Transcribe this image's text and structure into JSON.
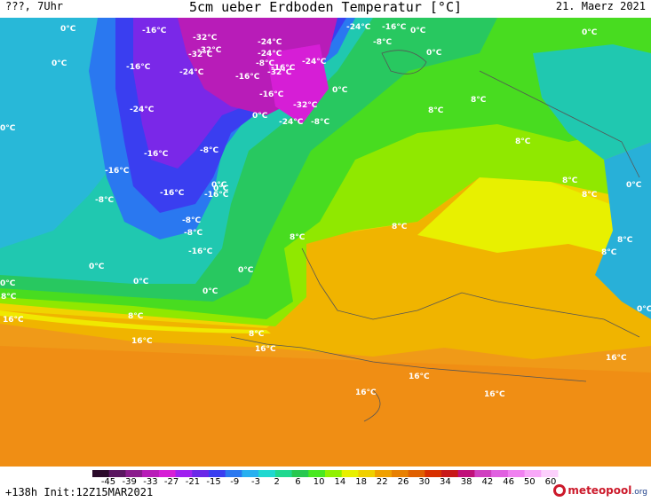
{
  "header": {
    "left": "???, 7Uhr",
    "title": "5cm ueber Erdboden Temperatur [°C]",
    "date": "21. Maerz 2021"
  },
  "footer": {
    "init": "+138h Init:12Z15MAR2021",
    "logo_main": "meteopool",
    "logo_tld": ".org"
  },
  "legend": {
    "ticks": [
      "-45",
      "-39",
      "-33",
      "-27",
      "-21",
      "-15",
      "-9",
      "-3",
      "2",
      "6",
      "10",
      "14",
      "18",
      "22",
      "26",
      "30",
      "34",
      "38",
      "42",
      "46",
      "50",
      "60"
    ],
    "colors": [
      "#2a0a2a",
      "#5a1660",
      "#8a1c8c",
      "#b81cb8",
      "#d61ed6",
      "#a020f0",
      "#6a28e8",
      "#3a3ef0",
      "#2a78f0",
      "#28b0f0",
      "#20d8d0",
      "#20d890",
      "#28c850",
      "#48e820",
      "#90f000",
      "#e8f000",
      "#f0d000",
      "#f0a000",
      "#e88000",
      "#e06000",
      "#d83000",
      "#c81818",
      "#c0107a",
      "#d040c0",
      "#e060e0",
      "#f080f0",
      "#f8a8f8",
      "#fcd0fc"
    ]
  },
  "map_labels": [
    {
      "t": "0°C"
    },
    {
      "t": "-16°C"
    },
    {
      "t": "-32°C"
    },
    {
      "t": "-32°C"
    },
    {
      "t": "-24°C"
    },
    {
      "t": "-24°C"
    },
    {
      "t": "-16°C"
    },
    {
      "t": "-8°C"
    },
    {
      "t": "0°C"
    },
    {
      "t": "0°C"
    },
    {
      "t": "-32°C"
    },
    {
      "t": "-24°C"
    },
    {
      "t": "-8°C"
    },
    {
      "t": "-16°C"
    },
    {
      "t": "-24°C"
    },
    {
      "t": "0°C"
    },
    {
      "t": "0°C"
    },
    {
      "t": "-16°C"
    },
    {
      "t": "-32°C"
    },
    {
      "t": "-16°C"
    },
    {
      "t": "-16°C"
    },
    {
      "t": "0°C"
    },
    {
      "t": "-32°C"
    },
    {
      "t": "8°C"
    },
    {
      "t": "-24°C"
    },
    {
      "t": "0°C"
    },
    {
      "t": "-24°C"
    },
    {
      "t": "-8°C"
    },
    {
      "t": "8°C"
    },
    {
      "t": "0°C"
    },
    {
      "t": "-24°C"
    },
    {
      "t": "-8°C"
    },
    {
      "t": "8°C"
    },
    {
      "t": "-16°C"
    },
    {
      "t": "-16°C"
    },
    {
      "t": "0°C"
    },
    {
      "t": "8°C"
    },
    {
      "t": "8°C"
    },
    {
      "t": "-8°C"
    },
    {
      "t": "-16°C"
    },
    {
      "t": "-16°C"
    },
    {
      "t": "8°C"
    },
    {
      "t": "0°C"
    },
    {
      "t": "0°C"
    },
    {
      "t": "-8°C"
    },
    {
      "t": "8°C"
    },
    {
      "t": "-8°C"
    },
    {
      "t": "8°C"
    },
    {
      "t": "0°C"
    },
    {
      "t": "-16°C"
    },
    {
      "t": "8°C"
    },
    {
      "t": "0°C"
    },
    {
      "t": "0°C"
    },
    {
      "t": "0°C"
    },
    {
      "t": "0°C"
    },
    {
      "t": "8°C"
    },
    {
      "t": "16°C"
    },
    {
      "t": "8°C"
    },
    {
      "t": "8°C"
    },
    {
      "t": "16°C"
    },
    {
      "t": "16°C"
    },
    {
      "t": "16°C"
    },
    {
      "t": "16°C"
    },
    {
      "t": "16°C"
    },
    {
      "t": "16°C"
    },
    {
      "t": "0°C"
    }
  ]
}
